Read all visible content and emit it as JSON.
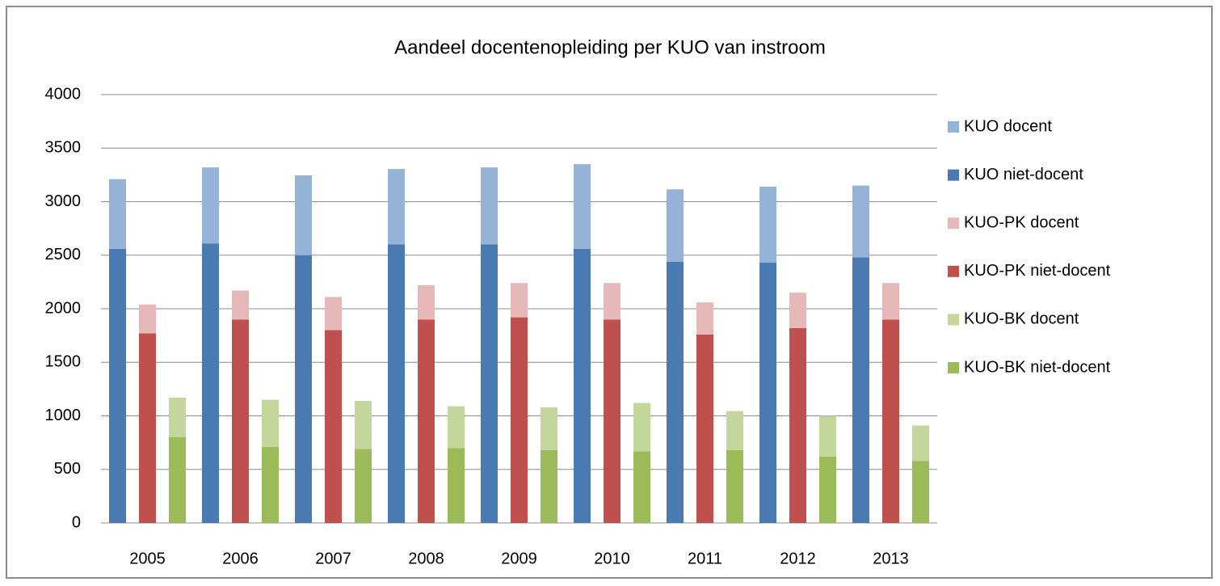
{
  "chart_data": {
    "type": "bar",
    "title": "Aandeel docentenopleiding per KUO van instroom",
    "categories": [
      "2005",
      "2006",
      "2007",
      "2008",
      "2009",
      "2010",
      "2011",
      "2012",
      "2013"
    ],
    "series": [
      {
        "name": "KUO docent",
        "color": "#95b3d7",
        "values": [
          650,
          710,
          745,
          705,
          720,
          790,
          675,
          710,
          670
        ]
      },
      {
        "name": "KUO niet-docent",
        "color": "#4a7ab2",
        "values": [
          2560,
          2610,
          2500,
          2600,
          2600,
          2560,
          2440,
          2430,
          2480
        ]
      },
      {
        "name": "KUO-PK docent",
        "color": "#e6b9b8",
        "values": [
          270,
          270,
          310,
          320,
          320,
          340,
          300,
          330,
          340
        ]
      },
      {
        "name": "KUO-PK niet-docent",
        "color": "#c0504d",
        "values": [
          1770,
          1900,
          1800,
          1900,
          1920,
          1900,
          1760,
          1820,
          1900
        ]
      },
      {
        "name": "KUO-BK docent",
        "color": "#c3d69b",
        "values": [
          370,
          440,
          450,
          390,
          400,
          450,
          365,
          380,
          330
        ]
      },
      {
        "name": "KUO-BK niet-docent",
        "color": "#9bbb59",
        "values": [
          800,
          710,
          690,
          700,
          680,
          670,
          680,
          620,
          580
        ]
      }
    ],
    "ylim": [
      0,
      4000
    ],
    "yticks": [
      0,
      500,
      1000,
      1500,
      2000,
      2500,
      3000,
      3500,
      4000
    ],
    "grid": true,
    "legend": "right"
  }
}
